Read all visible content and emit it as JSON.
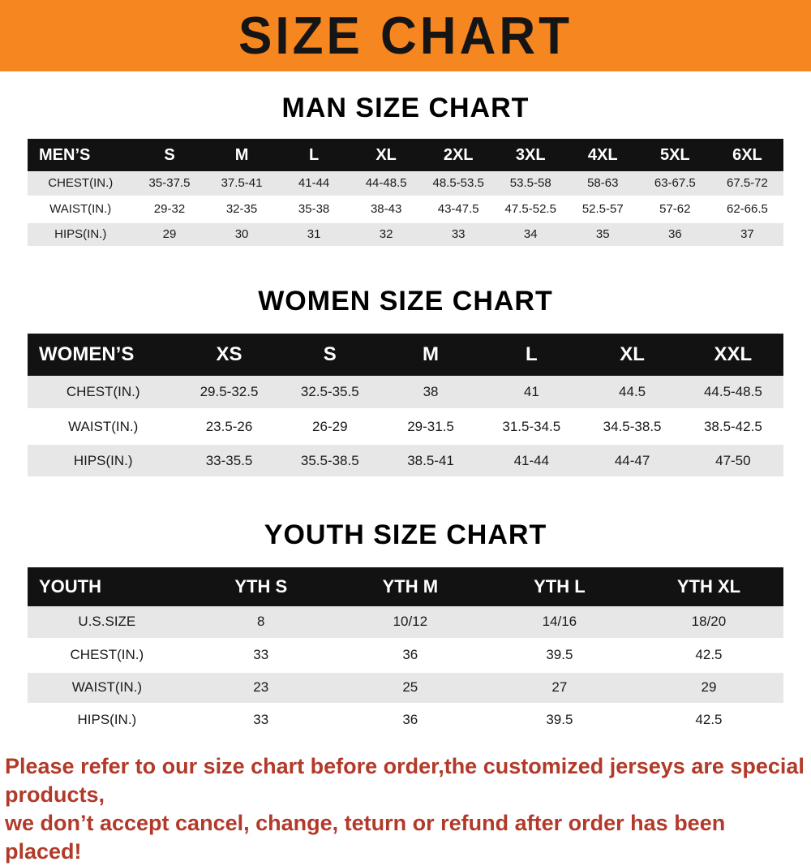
{
  "banner": {
    "title": "SIZE CHART",
    "bg_color": "#f6861f"
  },
  "tables": [
    {
      "title": "MAN SIZE CHART",
      "header": [
        "MEN’S",
        "S",
        "M",
        "L",
        "XL",
        "2XL",
        "3XL",
        "4XL",
        "5XL",
        "6XL"
      ],
      "rows": [
        [
          "CHEST(IN.)",
          "35-37.5",
          "37.5-41",
          "41-44",
          "44-48.5",
          "48.5-53.5",
          "53.5-58",
          "58-63",
          "63-67.5",
          "67.5-72"
        ],
        [
          "WAIST(IN.)",
          "29-32",
          "32-35",
          "35-38",
          "38-43",
          "43-47.5",
          "47.5-52.5",
          "52.5-57",
          "57-62",
          "62-66.5"
        ],
        [
          "HIPS(IN.)",
          "29",
          "30",
          "31",
          "32",
          "33",
          "34",
          "35",
          "36",
          "37"
        ]
      ]
    },
    {
      "title": "WOMEN SIZE CHART",
      "header": [
        "WOMEN’S",
        "XS",
        "S",
        "M",
        "L",
        "XL",
        "XXL"
      ],
      "rows": [
        [
          "CHEST(IN.)",
          "29.5-32.5",
          "32.5-35.5",
          "38",
          "41",
          "44.5",
          "44.5-48.5"
        ],
        [
          "WAIST(IN.)",
          "23.5-26",
          "26-29",
          "29-31.5",
          "31.5-34.5",
          "34.5-38.5",
          "38.5-42.5"
        ],
        [
          "HIPS(IN.)",
          "33-35.5",
          "35.5-38.5",
          "38.5-41",
          "41-44",
          "44-47",
          "47-50"
        ]
      ]
    },
    {
      "title": "YOUTH SIZE CHART",
      "header": [
        "YOUTH",
        "YTH S",
        "YTH M",
        "YTH L",
        "YTH XL"
      ],
      "rows": [
        [
          "U.S.SIZE",
          "8",
          "10/12",
          "14/16",
          "18/20"
        ],
        [
          "CHEST(IN.)",
          "33",
          "36",
          "39.5",
          "42.5"
        ],
        [
          "WAIST(IN.)",
          "23",
          "25",
          "27",
          "29"
        ],
        [
          "HIPS(IN.)",
          "33",
          "36",
          "39.5",
          "42.5"
        ]
      ]
    }
  ],
  "footer": {
    "lines": [
      "Please refer to our size chart before order,the customized jerseys are special products,",
      "we don’t accept cancel, change, teturn or refund after order has been placed!"
    ],
    "text_color": "#b23a2a"
  }
}
